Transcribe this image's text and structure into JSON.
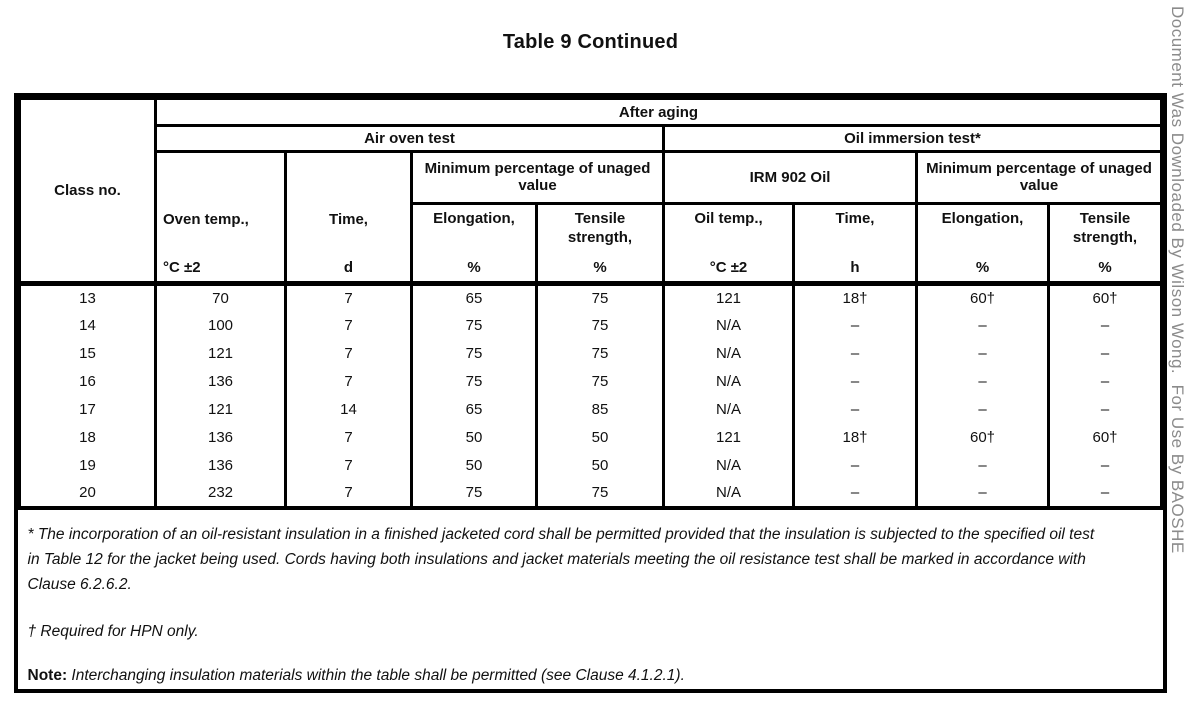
{
  "title": "Table 9 Continued",
  "watermark": "Document Was Downloaded By Wilson Wong.  For Use By BAOSHE",
  "table": {
    "header": {
      "class_no": "Class no.",
      "after_aging": "After aging",
      "air_oven_test": "Air oven test",
      "oil_immersion_test": "Oil immersion test*",
      "min_pct_air": "Minimum percentage of unaged value",
      "irm_oil": "IRM 902 Oil",
      "min_pct_oil": "Minimum percentage of unaged value",
      "columns": [
        {
          "name": "Oven temp.,",
          "unit": "°C ±2"
        },
        {
          "name": "Time,",
          "unit": "d"
        },
        {
          "name": "Elongation,",
          "unit": "%"
        },
        {
          "name": "Tensile strength,",
          "unit": "%"
        },
        {
          "name": "Oil temp.,",
          "unit": "°C ±2"
        },
        {
          "name": "Time,",
          "unit": "h"
        },
        {
          "name": "Elongation,",
          "unit": "%"
        },
        {
          "name": "Tensile strength,",
          "unit": "%"
        }
      ]
    },
    "rows": [
      [
        "13",
        "70",
        "7",
        "65",
        "75",
        "121",
        "18†",
        "60†",
        "60†"
      ],
      [
        "14",
        "100",
        "7",
        "75",
        "75",
        "N/A",
        "–",
        "–",
        "–"
      ],
      [
        "15",
        "121",
        "7",
        "75",
        "75",
        "N/A",
        "–",
        "–",
        "–"
      ],
      [
        "16",
        "136",
        "7",
        "75",
        "75",
        "N/A",
        "–",
        "–",
        "–"
      ],
      [
        "17",
        "121",
        "14",
        "65",
        "85",
        "N/A",
        "–",
        "–",
        "–"
      ],
      [
        "18",
        "136",
        "7",
        "50",
        "50",
        "121",
        "18†",
        "60†",
        "60†"
      ],
      [
        "19",
        "136",
        "7",
        "50",
        "50",
        "N/A",
        "–",
        "–",
        "–"
      ],
      [
        "20",
        "232",
        "7",
        "75",
        "75",
        "N/A",
        "–",
        "–",
        "–"
      ]
    ],
    "footnotes": {
      "asterisk": "* The incorporation of an oil-resistant insulation in a finished jacketed cord shall be permitted provided that the insulation is subjected to the specified oil test in Table 12 for the jacket being used. Cords having both insulations and jacket materials meeting the oil resistance test shall be marked in accordance with Clause 6.2.6.2.",
      "dagger": "† Required for HPN only.",
      "note_label": "Note:",
      "note_text": " Interchanging insulation materials within the table shall be permitted (see Clause 4.1.2.1)."
    }
  },
  "colors": {
    "border": "#000000",
    "text": "#111111",
    "watermark_gray": "#8b8b8b",
    "background": "#ffffff"
  }
}
